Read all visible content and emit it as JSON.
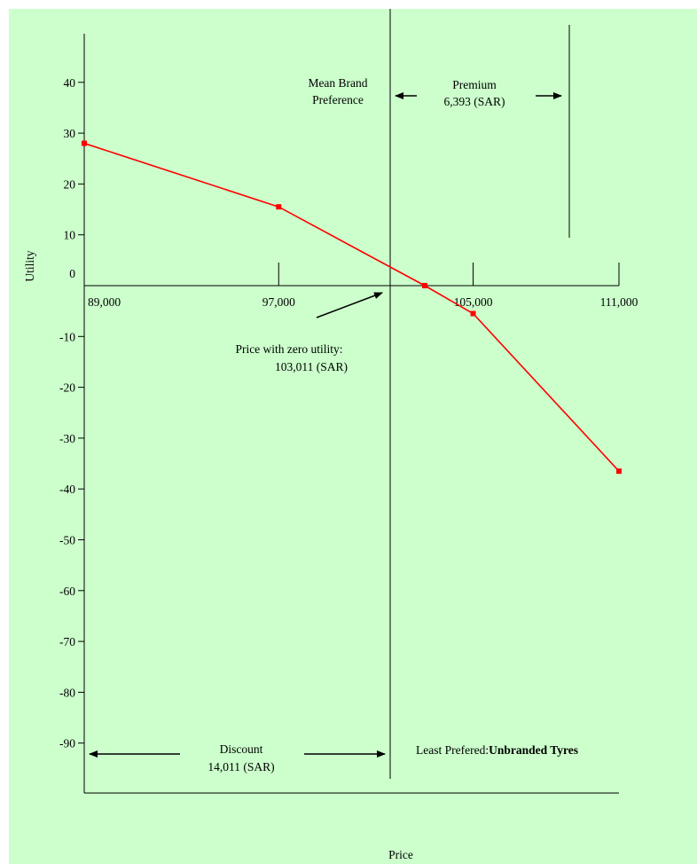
{
  "chart_data": {
    "type": "line",
    "xlabel": "Price",
    "ylabel": "Utility",
    "x_ticks": [
      "89,000",
      "97,000",
      "105,000",
      "111,000"
    ],
    "y_ticks": [
      "40",
      "30",
      "20",
      "10",
      "0",
      "-10",
      "-20",
      "-30",
      "-40",
      "-50",
      "-60",
      "-70",
      "-80",
      "-90"
    ],
    "ylim": [
      -90,
      40
    ],
    "grid": false,
    "series": [
      {
        "color": "#ff0000",
        "x": [
          89000,
          97000,
          103011,
          105000,
          111000
        ],
        "y": [
          28,
          15.5,
          0,
          -5.5,
          -36.5
        ]
      }
    ],
    "annotations": {
      "mean_brand_preference": [
        "Mean Brand",
        "Preference"
      ],
      "premium": [
        "Premium",
        "6,393 (SAR)"
      ],
      "zero_utility": [
        "Price with zero utility:",
        "103,011 (SAR)"
      ],
      "discount": [
        "Discount",
        "14,011 (SAR)"
      ],
      "least_preferred_prefix": "Least Prefered:",
      "least_preferred_name": "Unbranded Tyres"
    }
  }
}
